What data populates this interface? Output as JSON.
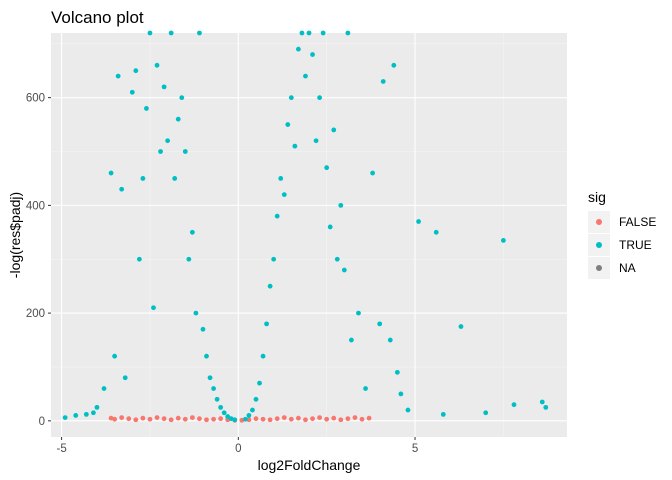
{
  "chart_data": {
    "type": "scatter",
    "title": "Volcano plot",
    "xlabel": "log2FoldChange",
    "ylabel": "-log(res$padj)",
    "xlim": [
      -5.3,
      9.3
    ],
    "ylim": [
      -30,
      720
    ],
    "x_ticks": [
      -5,
      0,
      5
    ],
    "y_ticks": [
      0,
      200,
      400,
      600
    ],
    "x_tick_labels": [
      "-5",
      "0",
      "5"
    ],
    "y_tick_labels": [
      "0",
      "200",
      "400",
      "600"
    ],
    "grid": true,
    "panel_background": "#ebebeb",
    "legend": {
      "title": "sig",
      "position": "right",
      "entries": [
        {
          "label": "FALSE",
          "color": "#f8766d"
        },
        {
          "label": "TRUE",
          "color": "#00bfc4"
        },
        {
          "label": "NA",
          "color": "#7f7f7f"
        }
      ]
    },
    "series": [
      {
        "name": "FALSE",
        "color": "#f8766d",
        "x": [
          -3.6,
          -3.5,
          -3.3,
          -3.1,
          -2.9,
          -2.7,
          -2.5,
          -2.3,
          -2.1,
          -1.9,
          -1.7,
          -1.5,
          -1.3,
          -1.1,
          -0.9,
          -0.7,
          -0.5,
          -0.3,
          -0.1,
          0.1,
          0.3,
          0.5,
          0.7,
          0.9,
          1.1,
          1.3,
          1.5,
          1.7,
          1.9,
          2.1,
          2.3,
          2.5,
          2.7,
          2.9,
          3.1,
          3.3,
          3.5,
          3.7
        ],
        "y": [
          5,
          3,
          6,
          4,
          2,
          5,
          3,
          6,
          4,
          2,
          5,
          3,
          6,
          4,
          2,
          3,
          4,
          2,
          1,
          1,
          2,
          4,
          3,
          2,
          4,
          6,
          3,
          5,
          2,
          4,
          6,
          3,
          5,
          2,
          4,
          6,
          3,
          5
        ]
      },
      {
        "name": "TRUE",
        "color": "#00bfc4",
        "x": [
          -4.9,
          -4.6,
          -4.3,
          -4.1,
          -4.0,
          -3.8,
          -3.6,
          -3.5,
          -3.4,
          -3.3,
          -3.2,
          -3.0,
          -2.9,
          -2.8,
          -2.7,
          -2.6,
          -2.5,
          -2.4,
          -2.3,
          -2.2,
          -2.1,
          -2.0,
          -1.9,
          -1.8,
          -1.7,
          -1.6,
          -1.5,
          -1.4,
          -1.3,
          -1.2,
          -1.1,
          -1.0,
          -0.9,
          -0.8,
          -0.7,
          -0.6,
          -0.5,
          -0.4,
          -0.3,
          -0.2,
          -0.1,
          0.2,
          0.3,
          0.4,
          0.5,
          0.6,
          0.7,
          0.8,
          0.9,
          1.0,
          1.1,
          1.2,
          1.3,
          1.4,
          1.5,
          1.6,
          1.7,
          1.8,
          1.9,
          2.0,
          2.1,
          2.2,
          2.3,
          2.4,
          2.5,
          2.6,
          2.7,
          2.8,
          2.9,
          3.0,
          3.1,
          3.2,
          3.4,
          3.6,
          3.8,
          4.0,
          4.1,
          4.3,
          4.4,
          4.5,
          4.6,
          4.8,
          5.1,
          5.6,
          5.8,
          6.3,
          7.0,
          7.5,
          7.8,
          8.6,
          8.7
        ],
        "y": [
          6,
          10,
          12,
          15,
          25,
          60,
          460,
          120,
          640,
          430,
          80,
          610,
          650,
          300,
          450,
          580,
          720,
          210,
          660,
          500,
          620,
          520,
          720,
          450,
          560,
          600,
          500,
          300,
          350,
          200,
          720,
          170,
          120,
          80,
          60,
          40,
          25,
          15,
          8,
          4,
          2,
          3,
          10,
          20,
          40,
          70,
          120,
          180,
          250,
          300,
          380,
          450,
          420,
          550,
          600,
          510,
          690,
          720,
          640,
          720,
          680,
          520,
          600,
          720,
          470,
          360,
          540,
          300,
          400,
          280,
          720,
          150,
          200,
          60,
          460,
          180,
          630,
          150,
          660,
          90,
          50,
          20,
          370,
          350,
          12,
          175,
          15,
          335,
          30,
          35,
          25
        ]
      }
    ]
  }
}
